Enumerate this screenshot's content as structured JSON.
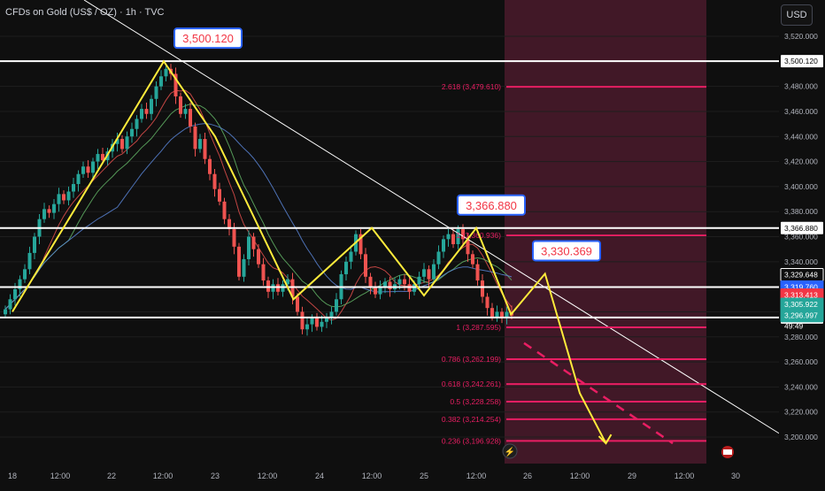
{
  "header": {
    "symbol_title": "CFDs on Gold (US$ / OZ) · 1h · TVC",
    "currency_button": "USD"
  },
  "colors": {
    "background": "#0f0f0f",
    "up_candle": "#26a69a",
    "down_candle": "#ef5350",
    "zigzag": "#ffeb3b",
    "fib_line": "#e91e63",
    "projection_zone": "#4a1a2c",
    "level_line": "#ffffff",
    "callout_border": "#2962ff",
    "callout_text": "#f23645",
    "callout_fill": "#ffffff"
  },
  "chart_data": {
    "type": "candlestick",
    "symbol": "CFDs on Gold (US$ / OZ)",
    "timeframe": "1h",
    "source": "TVC",
    "x_axis": {
      "tick_labels": [
        "18",
        "12:00",
        "22",
        "12:00",
        "23",
        "12:00",
        "24",
        "12:00",
        "25",
        "12:00",
        "26",
        "12:00",
        "29",
        "12:00",
        "30"
      ]
    },
    "y_axis": {
      "min": 3195,
      "max": 3525,
      "tick_values": [
        3200,
        3220,
        3240,
        3260,
        3280,
        3300,
        3320,
        3340,
        3360,
        3380,
        3400,
        3420,
        3440,
        3460,
        3480,
        3500,
        3520
      ],
      "tick_labels": [
        "3,200.000",
        "3,220.000",
        "3,240.000",
        "3,260.000",
        "3,280.000",
        "3,300.000",
        "3,320.000",
        "3,340.000",
        "3,360.000",
        "3,380.000",
        "3,400.000",
        "3,420.000",
        "3,440.000",
        "3,460.000",
        "3,480.000",
        "3,500.000",
        "3,520.000"
      ]
    },
    "horizontal_levels": [
      {
        "value": 3500.12,
        "label": "3,500.120"
      },
      {
        "value": 3366.88,
        "label": "3,366.880"
      },
      {
        "value": 3319.76,
        "label": "3,319.760"
      },
      {
        "value": 3295.452,
        "label": "3,295.452"
      }
    ],
    "price_tags": [
      {
        "value": 3329.648,
        "label": "3,329.648",
        "color": "#0f0f0f",
        "text_color": "#ffffff",
        "border": "#ffffff"
      },
      {
        "value": 3319.76,
        "label": "3,319.760",
        "color": "#2962ff",
        "text_color": "#ffffff"
      },
      {
        "value": 3313.413,
        "label": "3,313.413",
        "color": "#f23645",
        "text_color": "#ffffff"
      },
      {
        "value": 3305.922,
        "label": "3,305.922",
        "color": "#26a69a",
        "text_color": "#ffffff"
      },
      {
        "value": 3296.997,
        "label": "3,296.997",
        "color": "#26a69a",
        "text_color": "#ffffff"
      }
    ],
    "countdown": "49:49",
    "callouts": [
      {
        "label": "3,500.120",
        "value": 3500.12
      },
      {
        "label": "3,366.880",
        "value": 3366.88
      },
      {
        "label": "3,330.369",
        "value": 3330.369
      }
    ],
    "fib_levels": [
      {
        "ratio": "2.618",
        "value": 3479.61,
        "label": "2.618 (3,479.610)"
      },
      {
        "ratio": "1",
        "value": 3360.936,
        "label": "1 (3,360.936)"
      },
      {
        "ratio": "1",
        "value": 3287.595,
        "label": "1 (3,287.595)"
      },
      {
        "ratio": "0.786",
        "value": 3262.199,
        "label": "0.786 (3,262.199)"
      },
      {
        "ratio": "0.618",
        "value": 3242.261,
        "label": "0.618 (3,242.261)"
      },
      {
        "ratio": "0.5",
        "value": 3228.258,
        "label": "0.5 (3,228.258)"
      },
      {
        "ratio": "0.382",
        "value": 3214.254,
        "label": "0.382 (3,214.254)"
      },
      {
        "ratio": "0.236",
        "value": 3196.928,
        "label": "0.236 (3,196.928)"
      }
    ],
    "zigzag": [
      {
        "x": "18 00:00",
        "y": 3300
      },
      {
        "x": "18 14:00",
        "y": 3380
      },
      {
        "x": "22 12:00",
        "y": 3500
      },
      {
        "x": "23 00:00",
        "y": 3440
      },
      {
        "x": "23 18:00",
        "y": 3310
      },
      {
        "x": "24 12:00",
        "y": 3367
      },
      {
        "x": "25 00:00",
        "y": 3313
      },
      {
        "x": "25 12:00",
        "y": 3366.88
      },
      {
        "x": "25 20:00",
        "y": 3298
      },
      {
        "x": "26 04:00",
        "y": 3330.369
      },
      {
        "x": "26 12:00",
        "y": 3235
      },
      {
        "x": "26 18:00",
        "y": 3195
      }
    ],
    "closes": [
      3302,
      3310,
      3318,
      3326,
      3334,
      3347,
      3360,
      3374,
      3382,
      3379,
      3386,
      3394,
      3389,
      3396,
      3402,
      3410,
      3416,
      3411,
      3420,
      3426,
      3421,
      3428,
      3434,
      3438,
      3430,
      3440,
      3446,
      3454,
      3462,
      3458,
      3470,
      3480,
      3488,
      3494,
      3490,
      3472,
      3458,
      3462,
      3448,
      3430,
      3438,
      3422,
      3410,
      3398,
      3388,
      3374,
      3366,
      3352,
      3328,
      3342,
      3360,
      3350,
      3338,
      3325,
      3316,
      3322,
      3316,
      3322,
      3326,
      3312,
      3300,
      3286,
      3290,
      3295,
      3288,
      3292,
      3296,
      3300,
      3310,
      3330,
      3340,
      3348,
      3362,
      3346,
      3328,
      3320,
      3314,
      3320,
      3324,
      3318,
      3322,
      3326,
      3322,
      3316,
      3322,
      3328,
      3334,
      3326,
      3338,
      3348,
      3358,
      3362,
      3354,
      3366,
      3358,
      3346,
      3338,
      3325,
      3312,
      3303,
      3296,
      3300,
      3296,
      3300,
      3297
    ]
  }
}
